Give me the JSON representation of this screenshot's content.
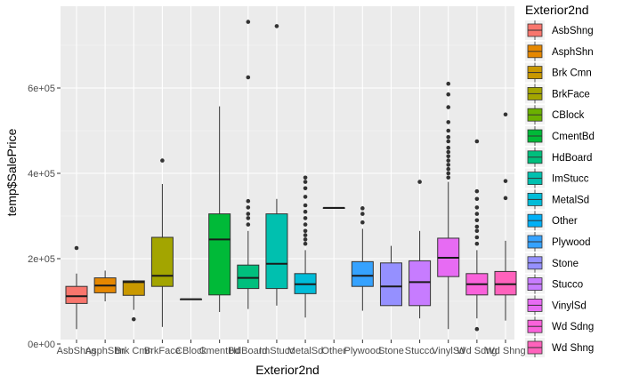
{
  "chart_data": {
    "type": "box",
    "xlabel": "Exterior2nd",
    "ylabel": "temp$SalePrice",
    "ylim": [
      0,
      800000
    ],
    "y_ticks": [
      {
        "value": 0,
        "label": "0e+00"
      },
      {
        "value": 200000,
        "label": "2e+05"
      },
      {
        "value": 400000,
        "label": "4e+05"
      },
      {
        "value": 600000,
        "label": "6e+05"
      }
    ],
    "grid": true,
    "legend": {
      "title": "Exterior2nd",
      "position": "right"
    },
    "categories": [
      {
        "name": "AsbShng",
        "tick": "AsbShng",
        "color": "#F8766D",
        "min": 35000,
        "q1": 95000,
        "median": 112000,
        "q3": 135000,
        "max": 165000,
        "outliers": [
          225000
        ]
      },
      {
        "name": "AsphShn",
        "tick": "AsphShn",
        "color": "#E58700",
        "min": 100000,
        "q1": 120000,
        "median": 137000,
        "q3": 155000,
        "max": 172000,
        "outliers": []
      },
      {
        "name": "Brk Cmn",
        "tick": "Brk Cmn",
        "color": "#C99800",
        "min": 80000,
        "q1": 114000,
        "median": 145000,
        "q3": 148000,
        "max": 150000,
        "outliers": [
          58000
        ]
      },
      {
        "name": "BrkFace",
        "tick": "BrkFace",
        "color": "#A3A500",
        "min": 40000,
        "q1": 135000,
        "median": 160000,
        "q3": 250000,
        "max": 375000,
        "outliers": [
          430000
        ]
      },
      {
        "name": "CBlock",
        "tick": "CBlock",
        "color": "#6BB100",
        "min": 105000,
        "q1": 105000,
        "median": 105000,
        "q3": 105000,
        "max": 105000,
        "outliers": []
      },
      {
        "name": "CmentBd",
        "tick": "CmentBd",
        "color": "#00BA38",
        "min": 75000,
        "q1": 115000,
        "median": 245000,
        "q3": 305000,
        "max": 557000,
        "outliers": []
      },
      {
        "name": "HdBoard",
        "tick": "HdBoard",
        "color": "#00BF7D",
        "min": 82000,
        "q1": 130000,
        "median": 155000,
        "q3": 185000,
        "max": 265000,
        "outliers": [
          280000,
          295000,
          305000,
          320000,
          335000,
          625000,
          755000
        ]
      },
      {
        "name": "ImStucc",
        "tick": "ImStucc",
        "color": "#00C0AF",
        "min": 90000,
        "q1": 130000,
        "median": 188000,
        "q3": 305000,
        "max": 340000,
        "outliers": [
          745000
        ]
      },
      {
        "name": "MetalSd",
        "tick": "MetalSd",
        "color": "#00BCD8",
        "min": 62000,
        "q1": 118000,
        "median": 140000,
        "q3": 165000,
        "max": 220000,
        "outliers": [
          235000,
          245000,
          255000,
          265000,
          280000,
          295000,
          310000,
          325000,
          345000,
          365000,
          380000,
          390000
        ]
      },
      {
        "name": "Other",
        "tick": "Other",
        "color": "#00B0F6",
        "min": 319000,
        "q1": 319000,
        "median": 319000,
        "q3": 319000,
        "max": 319000,
        "outliers": []
      },
      {
        "name": "Plywood",
        "tick": "Plywood",
        "color": "#35A2FF",
        "min": 78000,
        "q1": 135000,
        "median": 160000,
        "q3": 193000,
        "max": 270000,
        "outliers": [
          285000,
          305000,
          318000
        ]
      },
      {
        "name": "Stone",
        "tick": "Stone",
        "color": "#9590FF",
        "min": 90000,
        "q1": 90000,
        "median": 135000,
        "q3": 190000,
        "max": 230000,
        "outliers": []
      },
      {
        "name": "Stucco",
        "tick": "Stucco",
        "color": "#C77CFF",
        "min": 60000,
        "q1": 90000,
        "median": 145000,
        "q3": 195000,
        "max": 265000,
        "outliers": [
          380000
        ]
      },
      {
        "name": "VinylSd",
        "tick": "VinylSd",
        "color": "#E76BF3",
        "min": 35000,
        "q1": 158000,
        "median": 202000,
        "q3": 248000,
        "max": 380000,
        "outliers": [
          390000,
          400000,
          410000,
          420000,
          430000,
          440000,
          450000,
          460000,
          475000,
          485000,
          500000,
          520000,
          555000,
          585000,
          610000
        ]
      },
      {
        "name": "Wd Sdng",
        "tick": "Wd Sdng",
        "color": "#FA62DB",
        "min": 60000,
        "q1": 115000,
        "median": 140000,
        "q3": 165000,
        "max": 220000,
        "outliers": [
          35000,
          235000,
          250000,
          265000,
          275000,
          290000,
          305000,
          320000,
          340000,
          358000,
          475000
        ]
      },
      {
        "name": "Wd Shng",
        "tick": "Wd Shng",
        "color": "#FF62BC",
        "min": 55000,
        "q1": 115000,
        "median": 140000,
        "q3": 170000,
        "max": 242000,
        "outliers": [
          342000,
          382000,
          538000
        ]
      }
    ]
  }
}
